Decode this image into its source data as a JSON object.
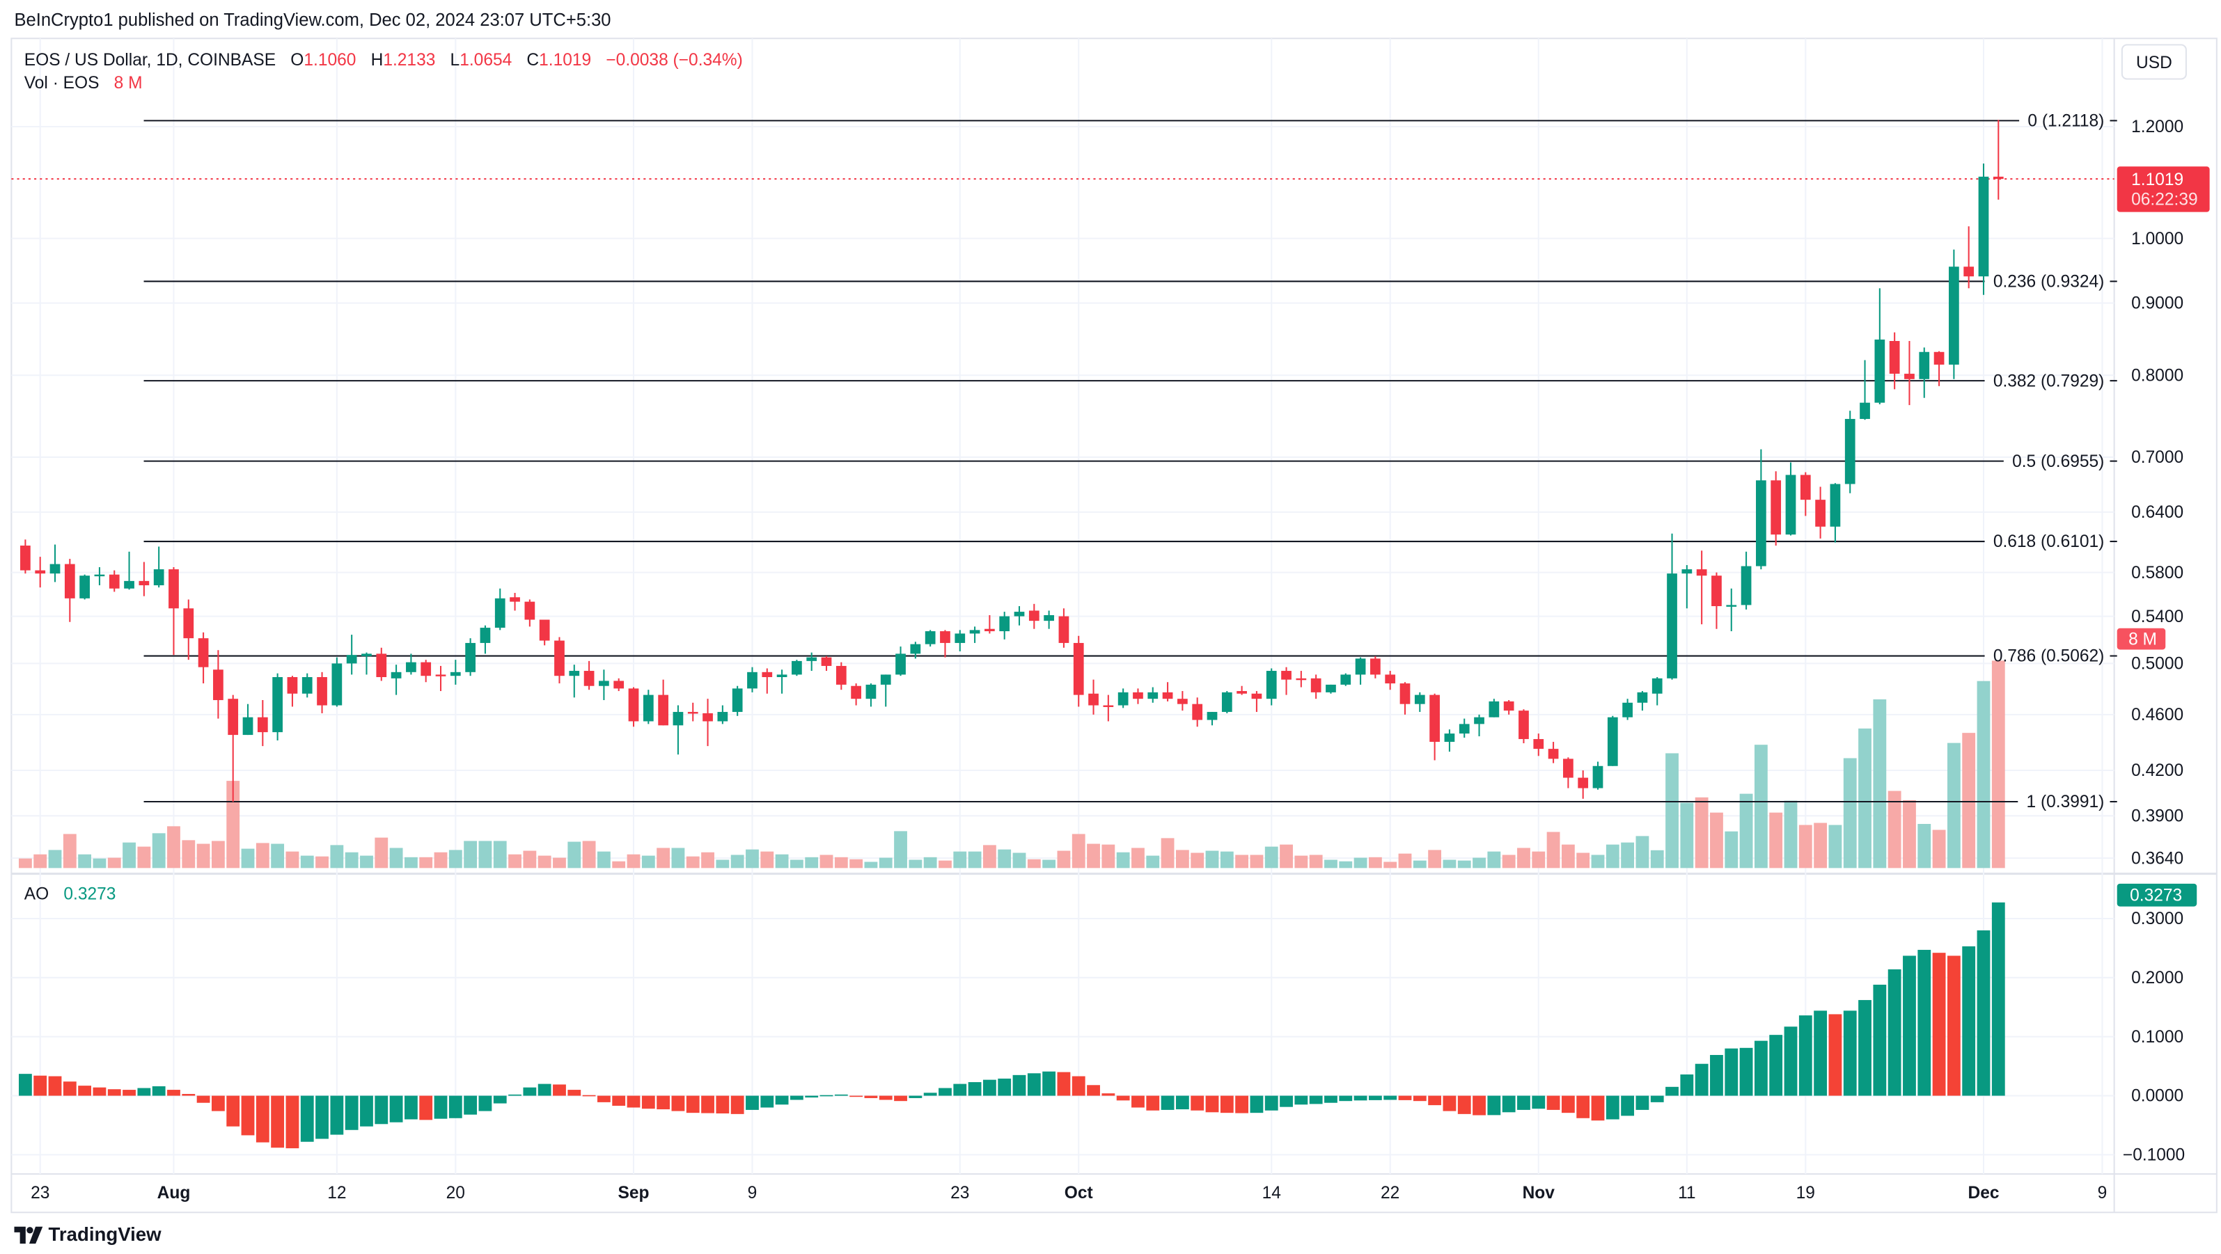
{
  "header": {
    "published": "BeInCrypto1 published on TradingView.com, Dec 02, 2024 23:07 UTC+5:30"
  },
  "legend": {
    "symbol": "EOS / US Dollar, 1D, COINBASE",
    "o_label": "O",
    "o": "1.1060",
    "h_label": "H",
    "h": "1.2133",
    "l_label": "L",
    "l": "1.0654",
    "c_label": "C",
    "c": "1.1019",
    "change": "−0.0038 (−0.34%)",
    "vol_label": "Vol · EOS",
    "vol_value": "8 M",
    "ao_label": "AO",
    "ao_value": "0.3273"
  },
  "currency_button": "USD",
  "last_price": {
    "price": "1.1019",
    "countdown": "06:22:39"
  },
  "volume_badge": "8 M",
  "ao_badge": "0.3273",
  "footer": {
    "brand": "TradingView"
  },
  "colors": {
    "up": "#089981",
    "down": "#F23645",
    "vol_up": "#92D2CC",
    "vol_down": "#F7A9A7",
    "ao_up": "#089981",
    "ao_down": "#F44336",
    "grid": "#f0f3fa"
  },
  "chart_data": {
    "type": "candlestick",
    "title": "EOS / US Dollar, 1D, COINBASE",
    "first_date": "2024-07-22",
    "price_scale": "log",
    "price_ticks": [
      1.2,
      1.0,
      0.9,
      0.8,
      0.7,
      0.64,
      0.58,
      0.54,
      0.5,
      0.46,
      0.42,
      0.39,
      0.364
    ],
    "ao_ticks": [
      0.3,
      0.2,
      0.1,
      0.0,
      -0.1
    ],
    "time_ticks": [
      {
        "label": "23",
        "date": "2024-07-23",
        "bold": false
      },
      {
        "label": "Aug",
        "date": "2024-08-01",
        "bold": true
      },
      {
        "label": "12",
        "date": "2024-08-12",
        "bold": false
      },
      {
        "label": "20",
        "date": "2024-08-20",
        "bold": false
      },
      {
        "label": "Sep",
        "date": "2024-09-01",
        "bold": true
      },
      {
        "label": "9",
        "date": "2024-09-09",
        "bold": false
      },
      {
        "label": "23",
        "date": "2024-09-23",
        "bold": false
      },
      {
        "label": "Oct",
        "date": "2024-10-01",
        "bold": true
      },
      {
        "label": "14",
        "date": "2024-10-14",
        "bold": false
      },
      {
        "label": "22",
        "date": "2024-10-22",
        "bold": false
      },
      {
        "label": "Nov",
        "date": "2024-11-01",
        "bold": true
      },
      {
        "label": "11",
        "date": "2024-11-11",
        "bold": false
      },
      {
        "label": "19",
        "date": "2024-11-19",
        "bold": false
      },
      {
        "label": "Dec",
        "date": "2024-12-01",
        "bold": true
      },
      {
        "label": "9",
        "date": "2024-12-09",
        "bold": false
      }
    ],
    "fib_levels": [
      {
        "label": "0 (1.2118)",
        "price": 1.2118
      },
      {
        "label": "0.236 (0.9324)",
        "price": 0.9324
      },
      {
        "label": "0.382 (0.7929)",
        "price": 0.7929
      },
      {
        "label": "0.5 (0.6955)",
        "price": 0.6955
      },
      {
        "label": "0.618 (0.6101)",
        "price": 0.6101
      },
      {
        "label": "0.786 (0.5062)",
        "price": 0.5062
      },
      {
        "label": "1 (0.3991)",
        "price": 0.3991
      }
    ],
    "ohlcv_columns": [
      "open",
      "high",
      "low",
      "close",
      "volume_millions"
    ],
    "ohlcv": [
      [
        0.606,
        0.612,
        0.579,
        0.582,
        0.37
      ],
      [
        0.582,
        0.595,
        0.566,
        0.579,
        0.53
      ],
      [
        0.579,
        0.607,
        0.571,
        0.588,
        0.7
      ],
      [
        0.588,
        0.593,
        0.535,
        0.556,
        1.32
      ],
      [
        0.556,
        0.578,
        0.555,
        0.577,
        0.53
      ],
      [
        0.577,
        0.585,
        0.568,
        0.578,
        0.37
      ],
      [
        0.578,
        0.582,
        0.562,
        0.565,
        0.4
      ],
      [
        0.565,
        0.6,
        0.564,
        0.572,
        0.99
      ],
      [
        0.572,
        0.59,
        0.558,
        0.568,
        0.83
      ],
      [
        0.568,
        0.605,
        0.566,
        0.583,
        1.35
      ],
      [
        0.583,
        0.585,
        0.507,
        0.547,
        1.62
      ],
      [
        0.547,
        0.555,
        0.503,
        0.521,
        1.08
      ],
      [
        0.521,
        0.526,
        0.484,
        0.497,
        0.94
      ],
      [
        0.495,
        0.511,
        0.457,
        0.471,
        1.05
      ],
      [
        0.472,
        0.475,
        0.399,
        0.445,
        3.38
      ],
      [
        0.445,
        0.468,
        0.445,
        0.458,
        0.75
      ],
      [
        0.458,
        0.471,
        0.437,
        0.447,
        0.97
      ],
      [
        0.447,
        0.492,
        0.441,
        0.489,
        0.94
      ],
      [
        0.489,
        0.49,
        0.466,
        0.476,
        0.64
      ],
      [
        0.476,
        0.492,
        0.473,
        0.489,
        0.48
      ],
      [
        0.489,
        0.493,
        0.461,
        0.467,
        0.45
      ],
      [
        0.467,
        0.505,
        0.466,
        0.5,
        0.89
      ],
      [
        0.5,
        0.524,
        0.491,
        0.507,
        0.61
      ],
      [
        0.506,
        0.509,
        0.491,
        0.508,
        0.48
      ],
      [
        0.508,
        0.513,
        0.486,
        0.489,
        1.18
      ],
      [
        0.488,
        0.499,
        0.475,
        0.493,
        0.78
      ],
      [
        0.493,
        0.508,
        0.491,
        0.501,
        0.42
      ],
      [
        0.501,
        0.503,
        0.485,
        0.49,
        0.42
      ],
      [
        0.491,
        0.498,
        0.478,
        0.49,
        0.61
      ],
      [
        0.49,
        0.503,
        0.483,
        0.493,
        0.7
      ],
      [
        0.493,
        0.521,
        0.49,
        0.517,
        1.05
      ],
      [
        0.517,
        0.532,
        0.508,
        0.53,
        1.05
      ],
      [
        0.53,
        0.565,
        0.528,
        0.556,
        1.05
      ],
      [
        0.557,
        0.561,
        0.545,
        0.553,
        0.53
      ],
      [
        0.553,
        0.555,
        0.531,
        0.537,
        0.67
      ],
      [
        0.537,
        0.537,
        0.515,
        0.519,
        0.48
      ],
      [
        0.519,
        0.522,
        0.484,
        0.49,
        0.4
      ],
      [
        0.49,
        0.499,
        0.473,
        0.494,
        1.02
      ],
      [
        0.494,
        0.502,
        0.479,
        0.482,
        1.05
      ],
      [
        0.482,
        0.495,
        0.471,
        0.486,
        0.64
      ],
      [
        0.486,
        0.488,
        0.478,
        0.48,
        0.26
      ],
      [
        0.48,
        0.481,
        0.451,
        0.455,
        0.53
      ],
      [
        0.455,
        0.479,
        0.453,
        0.475,
        0.48
      ],
      [
        0.475,
        0.487,
        0.452,
        0.452,
        0.78
      ],
      [
        0.452,
        0.467,
        0.431,
        0.462,
        0.78
      ],
      [
        0.462,
        0.469,
        0.455,
        0.461,
        0.45
      ],
      [
        0.461,
        0.472,
        0.437,
        0.455,
        0.61
      ],
      [
        0.455,
        0.467,
        0.453,
        0.462,
        0.32
      ],
      [
        0.462,
        0.482,
        0.459,
        0.48,
        0.51
      ],
      [
        0.48,
        0.497,
        0.477,
        0.493,
        0.72
      ],
      [
        0.493,
        0.496,
        0.476,
        0.489,
        0.64
      ],
      [
        0.489,
        0.495,
        0.476,
        0.491,
        0.53
      ],
      [
        0.491,
        0.503,
        0.49,
        0.502,
        0.32
      ],
      [
        0.502,
        0.509,
        0.494,
        0.505,
        0.42
      ],
      [
        0.505,
        0.506,
        0.494,
        0.498,
        0.51
      ],
      [
        0.498,
        0.501,
        0.479,
        0.483,
        0.42
      ],
      [
        0.482,
        0.484,
        0.467,
        0.472,
        0.34
      ],
      [
        0.472,
        0.484,
        0.466,
        0.483,
        0.24
      ],
      [
        0.483,
        0.491,
        0.466,
        0.491,
        0.4
      ],
      [
        0.491,
        0.514,
        0.49,
        0.508,
        1.43
      ],
      [
        0.508,
        0.518,
        0.504,
        0.516,
        0.32
      ],
      [
        0.516,
        0.528,
        0.514,
        0.527,
        0.42
      ],
      [
        0.527,
        0.528,
        0.505,
        0.517,
        0.29
      ],
      [
        0.517,
        0.528,
        0.51,
        0.525,
        0.64
      ],
      [
        0.525,
        0.531,
        0.517,
        0.528,
        0.64
      ],
      [
        0.529,
        0.541,
        0.525,
        0.527,
        0.89
      ],
      [
        0.527,
        0.544,
        0.52,
        0.54,
        0.72
      ],
      [
        0.54,
        0.549,
        0.532,
        0.544,
        0.59
      ],
      [
        0.545,
        0.551,
        0.529,
        0.536,
        0.34
      ],
      [
        0.536,
        0.545,
        0.529,
        0.541,
        0.32
      ],
      [
        0.54,
        0.547,
        0.513,
        0.517,
        0.67
      ],
      [
        0.517,
        0.523,
        0.466,
        0.475,
        1.32
      ],
      [
        0.476,
        0.487,
        0.46,
        0.467,
        0.94
      ],
      [
        0.467,
        0.475,
        0.455,
        0.466,
        0.91
      ],
      [
        0.467,
        0.48,
        0.465,
        0.477,
        0.61
      ],
      [
        0.477,
        0.48,
        0.468,
        0.472,
        0.78
      ],
      [
        0.472,
        0.481,
        0.469,
        0.477,
        0.48
      ],
      [
        0.477,
        0.485,
        0.47,
        0.472,
        1.16
      ],
      [
        0.472,
        0.478,
        0.463,
        0.468,
        0.7
      ],
      [
        0.468,
        0.473,
        0.451,
        0.456,
        0.59
      ],
      [
        0.456,
        0.462,
        0.452,
        0.462,
        0.67
      ],
      [
        0.462,
        0.478,
        0.461,
        0.477,
        0.64
      ],
      [
        0.478,
        0.482,
        0.475,
        0.476,
        0.51
      ],
      [
        0.476,
        0.478,
        0.462,
        0.472,
        0.51
      ],
      [
        0.472,
        0.496,
        0.467,
        0.494,
        0.83
      ],
      [
        0.494,
        0.497,
        0.475,
        0.487,
        0.91
      ],
      [
        0.488,
        0.494,
        0.481,
        0.487,
        0.48
      ],
      [
        0.488,
        0.491,
        0.472,
        0.477,
        0.51
      ],
      [
        0.477,
        0.483,
        0.476,
        0.483,
        0.32
      ],
      [
        0.483,
        0.492,
        0.482,
        0.491,
        0.26
      ],
      [
        0.491,
        0.505,
        0.483,
        0.504,
        0.4
      ],
      [
        0.504,
        0.506,
        0.488,
        0.491,
        0.42
      ],
      [
        0.491,
        0.494,
        0.479,
        0.484,
        0.24
      ],
      [
        0.484,
        0.485,
        0.46,
        0.468,
        0.56
      ],
      [
        0.468,
        0.477,
        0.462,
        0.475,
        0.29
      ],
      [
        0.475,
        0.476,
        0.427,
        0.44,
        0.7
      ],
      [
        0.44,
        0.449,
        0.433,
        0.446,
        0.32
      ],
      [
        0.446,
        0.457,
        0.443,
        0.453,
        0.29
      ],
      [
        0.453,
        0.46,
        0.444,
        0.458,
        0.4
      ],
      [
        0.458,
        0.472,
        0.458,
        0.47,
        0.64
      ],
      [
        0.47,
        0.471,
        0.46,
        0.463,
        0.51
      ],
      [
        0.463,
        0.464,
        0.439,
        0.442,
        0.78
      ],
      [
        0.442,
        0.446,
        0.43,
        0.435,
        0.64
      ],
      [
        0.435,
        0.44,
        0.425,
        0.428,
        1.4
      ],
      [
        0.428,
        0.429,
        0.408,
        0.415,
        0.91
      ],
      [
        0.415,
        0.42,
        0.401,
        0.408,
        0.59
      ],
      [
        0.408,
        0.426,
        0.407,
        0.423,
        0.51
      ],
      [
        0.423,
        0.459,
        0.423,
        0.458,
        0.91
      ],
      [
        0.458,
        0.472,
        0.456,
        0.469,
        0.99
      ],
      [
        0.469,
        0.478,
        0.463,
        0.477,
        1.24
      ],
      [
        0.476,
        0.489,
        0.467,
        0.488,
        0.69
      ],
      [
        0.488,
        0.618,
        0.487,
        0.579,
        4.45
      ],
      [
        0.579,
        0.587,
        0.547,
        0.583,
        2.53
      ],
      [
        0.583,
        0.601,
        0.533,
        0.577,
        2.74
      ],
      [
        0.577,
        0.58,
        0.529,
        0.549,
        2.15
      ],
      [
        0.549,
        0.565,
        0.527,
        0.55,
        1.42
      ],
      [
        0.55,
        0.6,
        0.546,
        0.586,
        2.88
      ],
      [
        0.586,
        0.709,
        0.583,
        0.674,
        4.78
      ],
      [
        0.674,
        0.684,
        0.606,
        0.617,
        2.15
      ],
      [
        0.617,
        0.694,
        0.616,
        0.68,
        2.61
      ],
      [
        0.68,
        0.683,
        0.636,
        0.653,
        1.67
      ],
      [
        0.653,
        0.667,
        0.613,
        0.625,
        1.75
      ],
      [
        0.625,
        0.671,
        0.609,
        0.67,
        1.67
      ],
      [
        0.67,
        0.755,
        0.66,
        0.745,
        4.26
      ],
      [
        0.745,
        0.82,
        0.744,
        0.765,
        5.41
      ],
      [
        0.765,
        0.922,
        0.763,
        0.848,
        6.54
      ],
      [
        0.846,
        0.858,
        0.782,
        0.802,
        2.99
      ],
      [
        0.802,
        0.846,
        0.762,
        0.795,
        2.63
      ],
      [
        0.795,
        0.837,
        0.771,
        0.831,
        1.71
      ],
      [
        0.831,
        0.832,
        0.786,
        0.814,
        1.48
      ],
      [
        0.814,
        0.982,
        0.795,
        0.955,
        4.85
      ],
      [
        0.955,
        1.02,
        0.922,
        0.94,
        5.24
      ],
      [
        0.94,
        1.13,
        0.912,
        1.106,
        7.25
      ],
      [
        1.106,
        1.2133,
        1.0654,
        1.1019,
        8.04
      ]
    ],
    "ao": [
      0.037,
      0.034,
      0.033,
      0.024,
      0.017,
      0.014,
      0.011,
      0.01,
      0.013,
      0.016,
      0.01,
      0.003,
      -0.012,
      -0.026,
      -0.052,
      -0.067,
      -0.079,
      -0.088,
      -0.089,
      -0.078,
      -0.073,
      -0.066,
      -0.058,
      -0.052,
      -0.048,
      -0.045,
      -0.04,
      -0.041,
      -0.039,
      -0.038,
      -0.032,
      -0.026,
      -0.013,
      0.002,
      0.014,
      0.02,
      0.019,
      0.01,
      0.001,
      -0.011,
      -0.017,
      -0.02,
      -0.022,
      -0.023,
      -0.026,
      -0.029,
      -0.0295,
      -0.03,
      -0.031,
      -0.024,
      -0.02,
      -0.015,
      -0.007,
      -0.003,
      0.001,
      0.002,
      -0.001,
      -0.004,
      -0.007,
      -0.009,
      -0.004,
      0.005,
      0.013,
      0.02,
      0.023,
      0.027,
      0.029,
      0.035,
      0.038,
      0.041,
      0.04,
      0.033,
      0.018,
      0.004,
      -0.008,
      -0.02,
      -0.025,
      -0.024,
      -0.023,
      -0.025,
      -0.028,
      -0.029,
      -0.0295,
      -0.029,
      -0.025,
      -0.019,
      -0.015,
      -0.014,
      -0.012,
      -0.009,
      -0.008,
      -0.0075,
      -0.007,
      -0.0075,
      -0.009,
      -0.016,
      -0.026,
      -0.031,
      -0.033,
      -0.0328,
      -0.028,
      -0.024,
      -0.022,
      -0.024,
      -0.029,
      -0.038,
      -0.042,
      -0.04,
      -0.034,
      -0.024,
      -0.011,
      0.015,
      0.036,
      0.054,
      0.069,
      0.08,
      0.081,
      0.093,
      0.103,
      0.117,
      0.136,
      0.144,
      0.138,
      0.144,
      0.162,
      0.188,
      0.214,
      0.237,
      0.247,
      0.242,
      0.237,
      0.253,
      0.28,
      0.3273
    ],
    "volume_max_label": "8 M",
    "volume_max": 8
  }
}
